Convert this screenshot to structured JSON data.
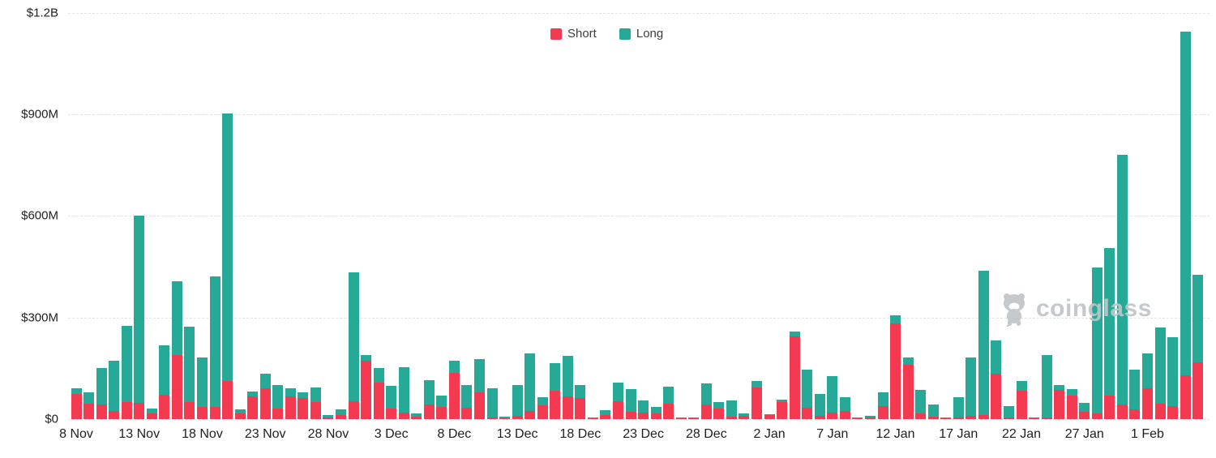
{
  "legend": {
    "short_label": "Short",
    "long_label": "Long"
  },
  "colors": {
    "short": "#f33a50",
    "long": "#26a997",
    "axis_text": "#1f1f1f",
    "gridline": "#e4e4e4",
    "watermark": "#c2c5c8"
  },
  "y_axis": {
    "tick_labels": [
      "$0",
      "$300M",
      "$600M",
      "$900M",
      "$1.2B"
    ],
    "tick_values_millions": [
      0,
      300,
      600,
      900,
      1200
    ]
  },
  "x_axis": {
    "tick_labels": [
      "8 Nov",
      "13 Nov",
      "18 Nov",
      "23 Nov",
      "28 Nov",
      "3 Dec",
      "8 Dec",
      "13 Dec",
      "18 Dec",
      "23 Dec",
      "28 Dec",
      "2 Jan",
      "7 Jan",
      "12 Jan",
      "17 Jan",
      "22 Jan",
      "27 Jan",
      "1 Feb"
    ],
    "tick_every_n_bars": 5
  },
  "watermark": {
    "text": "coinglass",
    "icon": "coinglass-bear-mascot-icon"
  },
  "chart_data": {
    "type": "bar",
    "stacked": true,
    "title": "",
    "xlabel": "",
    "ylabel": "",
    "unit": "USD millions",
    "ylim": [
      0,
      1200
    ],
    "grid": true,
    "legend_position": "top-center",
    "categories": [
      "8 Nov",
      "9 Nov",
      "10 Nov",
      "11 Nov",
      "12 Nov",
      "13 Nov",
      "14 Nov",
      "15 Nov",
      "16 Nov",
      "17 Nov",
      "18 Nov",
      "19 Nov",
      "20 Nov",
      "21 Nov",
      "22 Nov",
      "23 Nov",
      "24 Nov",
      "25 Nov",
      "26 Nov",
      "27 Nov",
      "28 Nov",
      "29 Nov",
      "30 Nov",
      "1 Dec",
      "2 Dec",
      "3 Dec",
      "4 Dec",
      "5 Dec",
      "6 Dec",
      "7 Dec",
      "8 Dec",
      "9 Dec",
      "10 Dec",
      "11 Dec",
      "12 Dec",
      "13 Dec",
      "14 Dec",
      "15 Dec",
      "16 Dec",
      "17 Dec",
      "18 Dec",
      "19 Dec",
      "20 Dec",
      "21 Dec",
      "22 Dec",
      "23 Dec",
      "24 Dec",
      "25 Dec",
      "26 Dec",
      "27 Dec",
      "28 Dec",
      "29 Dec",
      "30 Dec",
      "31 Dec",
      "1 Jan",
      "2 Jan",
      "3 Jan",
      "4 Jan",
      "5 Jan",
      "6 Jan",
      "7 Jan",
      "8 Jan",
      "9 Jan",
      "10 Jan",
      "11 Jan",
      "12 Jan",
      "13 Jan",
      "14 Jan",
      "15 Jan",
      "16 Jan",
      "17 Jan",
      "18 Jan",
      "19 Jan",
      "20 Jan",
      "21 Jan",
      "22 Jan",
      "23 Jan",
      "24 Jan",
      "25 Jan",
      "26 Jan",
      "27 Jan",
      "28 Jan",
      "29 Jan",
      "30 Jan",
      "31 Jan",
      "1 Feb",
      "2 Feb",
      "3 Feb",
      "4 Feb",
      "5 Feb"
    ],
    "series": [
      {
        "name": "Short",
        "values": [
          75,
          46,
          44,
          24,
          51,
          47,
          17,
          73,
          188,
          51,
          37,
          35,
          112,
          17,
          66,
          90,
          30,
          68,
          62,
          50,
          5,
          13,
          52,
          172,
          108,
          31,
          18,
          8,
          42,
          36,
          137,
          34,
          78,
          6,
          3,
          10,
          23,
          41,
          84,
          67,
          63,
          2,
          12,
          52,
          21,
          19,
          16,
          46,
          3,
          2,
          44,
          32,
          8,
          10,
          93,
          13,
          50,
          244,
          33,
          10,
          20,
          24,
          1,
          6,
          38,
          282,
          161,
          16,
          8,
          2,
          4,
          10,
          11,
          135,
          6,
          84,
          1,
          5,
          86,
          70,
          22,
          16,
          69,
          44,
          28,
          90,
          46,
          38,
          130,
          168
        ]
      },
      {
        "name": "Long",
        "values": [
          17,
          33,
          108,
          149,
          225,
          553,
          15,
          145,
          218,
          221,
          145,
          385,
          791,
          12,
          16,
          44,
          70,
          22,
          16,
          44,
          8,
          15,
          381,
          16,
          44,
          66,
          136,
          8,
          74,
          33,
          36,
          66,
          98,
          84,
          5,
          91,
          172,
          24,
          81,
          120,
          37,
          2,
          14,
          56,
          67,
          37,
          20,
          50,
          3,
          1,
          62,
          18,
          48,
          7,
          20,
          2,
          8,
          14,
          114,
          64,
          107,
          40,
          1,
          4,
          40,
          24,
          20,
          70,
          36,
          1,
          60,
          172,
          427,
          96,
          32,
          29,
          1,
          185,
          15,
          19,
          26,
          431,
          436,
          736,
          117,
          104,
          224,
          204,
          1015,
          259
        ]
      }
    ]
  }
}
